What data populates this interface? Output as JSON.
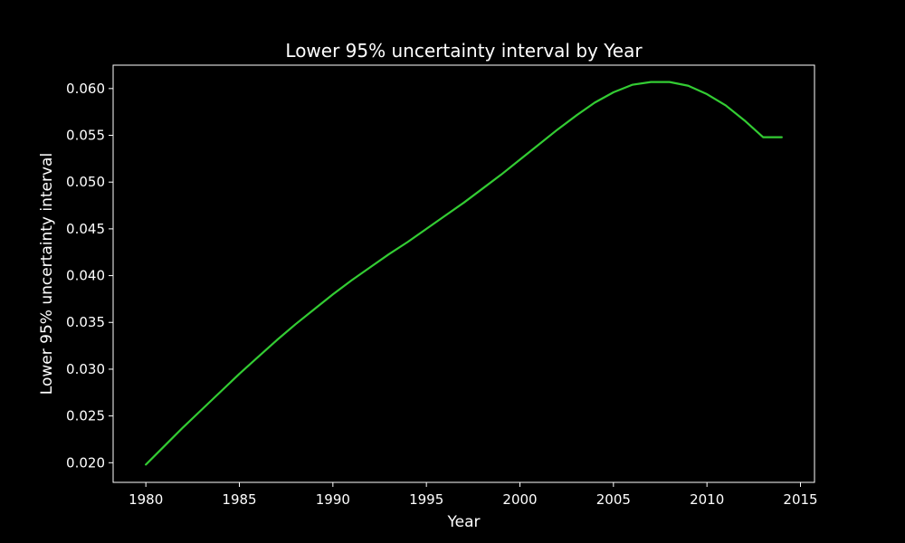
{
  "chart_data": {
    "type": "line",
    "title": "Lower 95% uncertainty interval by Year",
    "xlabel": "Year",
    "ylabel": "Lower 95% uncertainty interval",
    "xlim": [
      1978.25,
      2015.75
    ],
    "ylim": [
      0.0179,
      0.0625
    ],
    "x_ticks": [
      1980,
      1985,
      1990,
      1995,
      2000,
      2005,
      2010,
      2015
    ],
    "x_tick_labels": [
      "1980",
      "1985",
      "1990",
      "1995",
      "2000",
      "2005",
      "2010",
      "2015"
    ],
    "y_ticks": [
      0.02,
      0.025,
      0.03,
      0.035,
      0.04,
      0.045,
      0.05,
      0.055,
      0.06
    ],
    "y_tick_labels": [
      "0.020",
      "0.025",
      "0.030",
      "0.035",
      "0.040",
      "0.045",
      "0.050",
      "0.055",
      "0.060"
    ],
    "grid": false,
    "legend": "none",
    "colors": {
      "background": "#000000",
      "line": "#33cc33",
      "axes": "#ffffff",
      "text": "#ffffff"
    },
    "series": [
      {
        "x": [
          1980,
          1981,
          1982,
          1983,
          1984,
          1985,
          1986,
          1987,
          1988,
          1989,
          1990,
          1991,
          1992,
          1993,
          1994,
          1995,
          1996,
          1997,
          1998,
          1999,
          2000,
          2001,
          2002,
          2003,
          2004,
          2005,
          2006,
          2007,
          2008,
          2009,
          2010,
          2011,
          2012,
          2013,
          2014
        ],
        "values": [
          0.0198,
          0.0218,
          0.0238,
          0.0257,
          0.0276,
          0.0295,
          0.0313,
          0.0331,
          0.0348,
          0.0364,
          0.038,
          0.0395,
          0.0409,
          0.0423,
          0.0436,
          0.045,
          0.0464,
          0.0478,
          0.0493,
          0.0508,
          0.0524,
          0.054,
          0.0556,
          0.0571,
          0.0585,
          0.0596,
          0.0604,
          0.0607,
          0.0607,
          0.0603,
          0.0594,
          0.0582,
          0.0566,
          0.0548,
          0.0548
        ]
      }
    ]
  }
}
